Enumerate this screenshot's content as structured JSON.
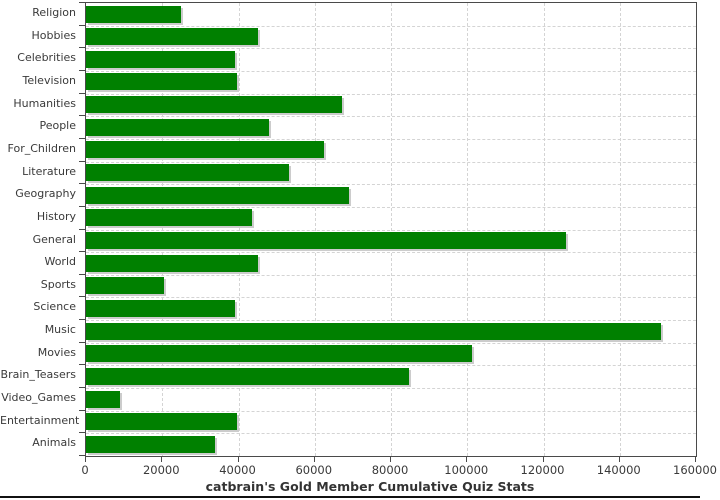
{
  "chart_data": {
    "type": "bar",
    "orientation": "horizontal",
    "title": "catbrain's Gold Member Cumulative Quiz Stats",
    "categories": [
      "Religion",
      "Hobbies",
      "Celebrities",
      "Television",
      "Humanities",
      "People",
      "For_Children",
      "Literature",
      "Geography",
      "History",
      "General",
      "World",
      "Sports",
      "Science",
      "Music",
      "Movies",
      "Brain_Teasers",
      "Video_Games",
      "Entertainment",
      "Animals"
    ],
    "values": [
      25000,
      45000,
      39000,
      39600,
      67200,
      48000,
      62500,
      53200,
      69100,
      43600,
      126000,
      45000,
      20400,
      39100,
      150700,
      101300,
      84800,
      9000,
      39600,
      33800
    ],
    "xlim": [
      0,
      160000
    ],
    "x_ticks": [
      0,
      20000,
      40000,
      60000,
      80000,
      100000,
      120000,
      140000,
      160000
    ],
    "x_tick_labels": [
      "0",
      "20000",
      "40000",
      "60000",
      "80000",
      "100000",
      "120000",
      "140000",
      "160000"
    ],
    "grid": true,
    "legend": "none",
    "bar_color": "#008000",
    "bar_shadow_color": "#cccccc",
    "gridline_color": "#d4d4d4",
    "axis_color": "#4a4a4a"
  }
}
